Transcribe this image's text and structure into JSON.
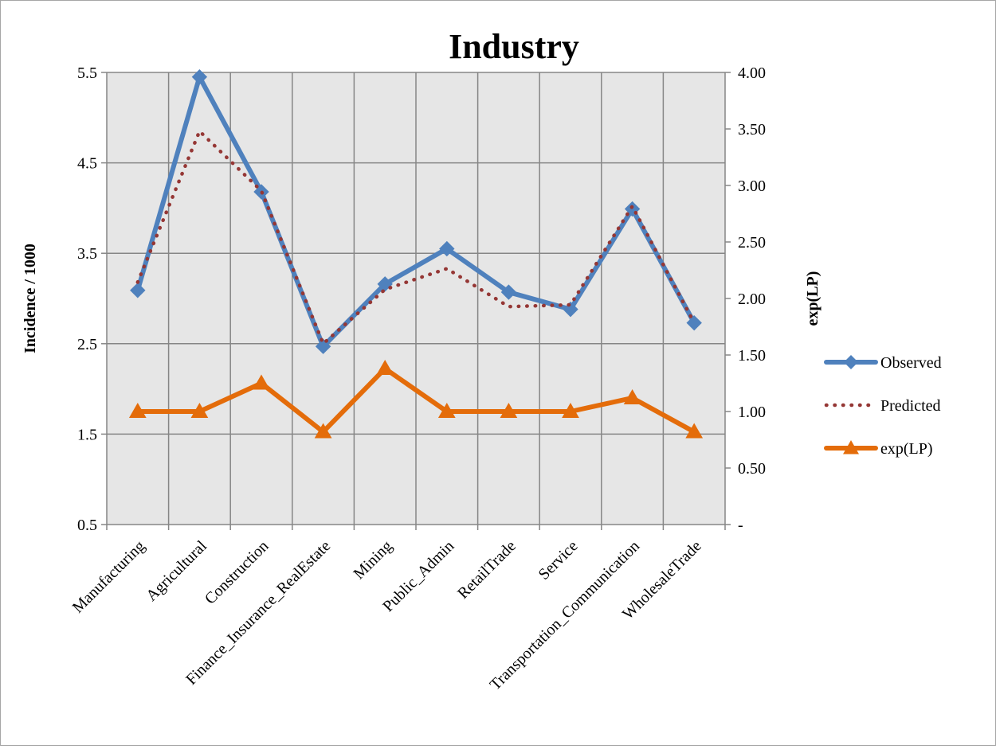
{
  "chart_data": {
    "type": "line",
    "title": "Industry",
    "ylabel": "Incidence / 1000",
    "y2label": "exp(LP)",
    "categories": [
      "Manufacturing",
      "Agricultural",
      "Construction",
      "Finance_Insurance_RealEstate",
      "Mining",
      "Public_Admin",
      "RetailTrade",
      "Service",
      "Transportation_Communication",
      "WholesaleTrade"
    ],
    "ylim": [
      0.5,
      5.5
    ],
    "yticks": [
      "0.5",
      "1.5",
      "2.5",
      "3.5",
      "4.5",
      "5.5"
    ],
    "y2lim": [
      0,
      4
    ],
    "y2ticks": [
      "-",
      "0.50",
      "1.00",
      "1.50",
      "2.00",
      "2.50",
      "3.00",
      "3.50",
      "4.00"
    ],
    "grid": true,
    "legend_position": "right",
    "series": [
      {
        "name": "Observed",
        "axis": "left",
        "style": "solid",
        "marker": "diamond",
        "color": "#4f81bd",
        "values": [
          3.09,
          5.45,
          4.18,
          2.47,
          3.16,
          3.55,
          3.07,
          2.88,
          3.99,
          2.73
        ]
      },
      {
        "name": "Predicted",
        "axis": "left",
        "style": "dotted",
        "marker": "none",
        "color": "#953735",
        "values": [
          3.18,
          4.85,
          4.19,
          2.5,
          3.1,
          3.33,
          2.91,
          2.93,
          4.02,
          2.73
        ]
      },
      {
        "name": "exp(LP)",
        "axis": "right",
        "style": "solid",
        "marker": "triangle",
        "color": "#e46c0a",
        "values": [
          1.0,
          1.0,
          1.25,
          0.82,
          1.38,
          1.0,
          1.0,
          1.0,
          1.12,
          0.82
        ]
      }
    ]
  }
}
